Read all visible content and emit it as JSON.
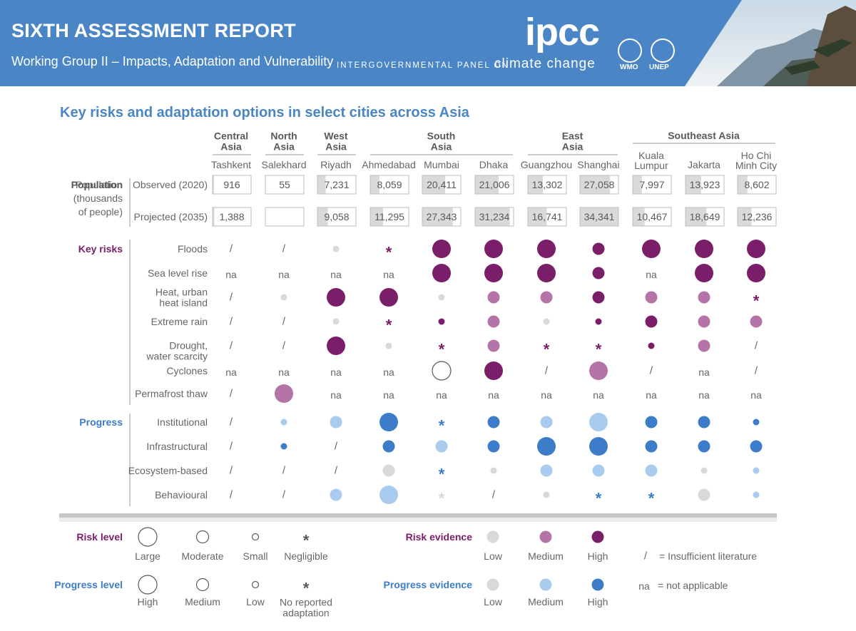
{
  "header": {
    "title": "SIXTH ASSESSMENT REPORT",
    "subtitle": "Working Group II – Impacts, Adaptation and Vulnerability",
    "logo_text": "ipcc",
    "logo_tagline_a": "INTERGOVERNMENTAL PANEL ON",
    "logo_tagline_b": "climate change",
    "partner_a": "WMO",
    "partner_b": "UNEP"
  },
  "colors": {
    "header_bg": "#4a86c5",
    "title_blue": "#4a86c5",
    "risk_high": "#7b1e6a",
    "risk_medium": "#b574a8",
    "evidence_low": "#d9d9d9",
    "progress_high": "#3d7cc9",
    "progress_medium": "#a8cbee"
  },
  "figure_title": "Key risks and adaptation options in select cities across Asia",
  "regions": [
    {
      "lines": [
        "Central",
        "Asia"
      ],
      "cities": [
        0
      ]
    },
    {
      "lines": [
        "North",
        "Asia"
      ],
      "cities": [
        1
      ]
    },
    {
      "lines": [
        "West",
        "Asia"
      ],
      "cities": [
        2
      ]
    },
    {
      "lines": [
        "South",
        "Asia"
      ],
      "cities": [
        3,
        4,
        5
      ]
    },
    {
      "lines": [
        "East",
        "Asia"
      ],
      "cities": [
        6,
        7
      ]
    },
    {
      "lines": [
        "Southeast Asia"
      ],
      "cities": [
        8,
        9,
        10
      ]
    }
  ],
  "cities": [
    {
      "name": [
        "Tashkent"
      ],
      "observed": 916,
      "projected": 1388
    },
    {
      "name": [
        "Salekhard"
      ],
      "observed": 55,
      "projected": null
    },
    {
      "name": [
        "Riyadh"
      ],
      "observed": 7231,
      "projected": 9058
    },
    {
      "name": [
        "Ahmedabad"
      ],
      "observed": 8059,
      "projected": 11295
    },
    {
      "name": [
        "Mumbai"
      ],
      "observed": 20411,
      "projected": 27343
    },
    {
      "name": [
        "Dhaka"
      ],
      "observed": 21006,
      "projected": 31234
    },
    {
      "name": [
        "Guangzhou"
      ],
      "observed": 13302,
      "projected": 16741
    },
    {
      "name": [
        "Shanghai"
      ],
      "observed": 27058,
      "projected": 34341
    },
    {
      "name": [
        "Kuala",
        "Lumpur"
      ],
      "observed": 7997,
      "projected": 10467
    },
    {
      "name": [
        "Jakarta"
      ],
      "observed": 13923,
      "projected": 18649
    },
    {
      "name": [
        "Ho Chi",
        "Minh City"
      ],
      "observed": 8602,
      "projected": 12236
    }
  ],
  "population": {
    "label": [
      "Population",
      "(thousands",
      "of people)"
    ],
    "observed_label": "Observed (2020)",
    "projected_label": "Projected (2035)"
  },
  "key_risks": {
    "label": "Key risks",
    "rows": [
      {
        "name": [
          "Floods"
        ],
        "cells": [
          "/",
          "/",
          "small-low",
          "*-high",
          "large-high",
          "large-high",
          "large-high",
          "moderate-high",
          "large-high",
          "large-high",
          "large-high"
        ]
      },
      {
        "name": [
          "Sea level rise"
        ],
        "cells": [
          "na",
          "na",
          "na",
          "na",
          "large-high",
          "large-high",
          "large-high",
          "moderate-high",
          "na",
          "large-high",
          "large-high"
        ]
      },
      {
        "name": [
          "Heat, urban",
          "heat island"
        ],
        "cells": [
          "/",
          "small-low",
          "large-high",
          "large-high",
          "small-low",
          "moderate-medium",
          "moderate-medium",
          "moderate-high",
          "moderate-medium",
          "moderate-medium",
          "*-high"
        ]
      },
      {
        "name": [
          "Extreme rain"
        ],
        "cells": [
          "/",
          "/",
          "small-low",
          "*-high",
          "small-high",
          "moderate-medium",
          "small-low",
          "small-high",
          "moderate-high",
          "moderate-medium",
          "moderate-medium"
        ]
      },
      {
        "name": [
          "Drought,",
          "water scarcity"
        ],
        "cells": [
          "/",
          "/",
          "large-high",
          "small-low",
          "*-high",
          "moderate-medium",
          "*-high",
          "*-high",
          "small-high",
          "moderate-medium",
          "/"
        ]
      },
      {
        "name": [
          "Cyclones"
        ],
        "cells": [
          "na",
          "na",
          "na",
          "na",
          "large-none",
          "large-high",
          "/",
          "large-medium",
          "/",
          "na",
          "/"
        ]
      },
      {
        "name": [
          "Permafrost thaw"
        ],
        "cells": [
          "/",
          "large-medium",
          "na",
          "na",
          "na",
          "na",
          "na",
          "na",
          "na",
          "na",
          "na"
        ]
      }
    ]
  },
  "progress": {
    "label": "Progress",
    "rows": [
      {
        "name": [
          "Institutional"
        ],
        "cells": [
          "/",
          "small-medium",
          "moderate-medium",
          "large-high",
          "*-high",
          "moderate-high",
          "moderate-medium",
          "large-medium",
          "moderate-high",
          "moderate-high",
          "small-high"
        ]
      },
      {
        "name": [
          "Infrastructural"
        ],
        "cells": [
          "/",
          "small-high",
          "/",
          "moderate-high",
          "moderate-medium",
          "moderate-high",
          "large-high",
          "large-high",
          "moderate-high",
          "moderate-high",
          "moderate-high"
        ]
      },
      {
        "name": [
          "Ecosystem-based"
        ],
        "cells": [
          "/",
          "/",
          "/",
          "moderate-low",
          "*-high",
          "small-low",
          "moderate-medium",
          "moderate-medium",
          "moderate-medium",
          "small-low",
          "small-medium"
        ]
      },
      {
        "name": [
          "Behavioural"
        ],
        "cells": [
          "/",
          "/",
          "moderate-medium",
          "large-medium",
          "*-low",
          "/",
          "small-low",
          "*-high",
          "*-high",
          "moderate-low",
          "small-medium"
        ]
      }
    ]
  },
  "legend": {
    "risk_level": {
      "title": "Risk level",
      "items": [
        [
          "Large"
        ],
        [
          "Moderate"
        ],
        [
          "Small"
        ],
        [
          "Negligible"
        ]
      ]
    },
    "risk_evidence": {
      "title": "Risk evidence",
      "items": [
        [
          "Low"
        ],
        [
          "Medium"
        ],
        [
          "High"
        ]
      ]
    },
    "progress_level": {
      "title": "Progress level",
      "items": [
        [
          "High"
        ],
        [
          "Medium"
        ],
        [
          "Low"
        ],
        [
          "No reported",
          "adaptation"
        ]
      ]
    },
    "progress_evidence": {
      "title": "Progress evidence",
      "items": [
        [
          "Low"
        ],
        [
          "Medium"
        ],
        [
          "High"
        ]
      ]
    },
    "insufficient_symbol": "/",
    "insufficient": "= Insufficient literature",
    "na_symbol": "na",
    "na": "= not applicable"
  }
}
